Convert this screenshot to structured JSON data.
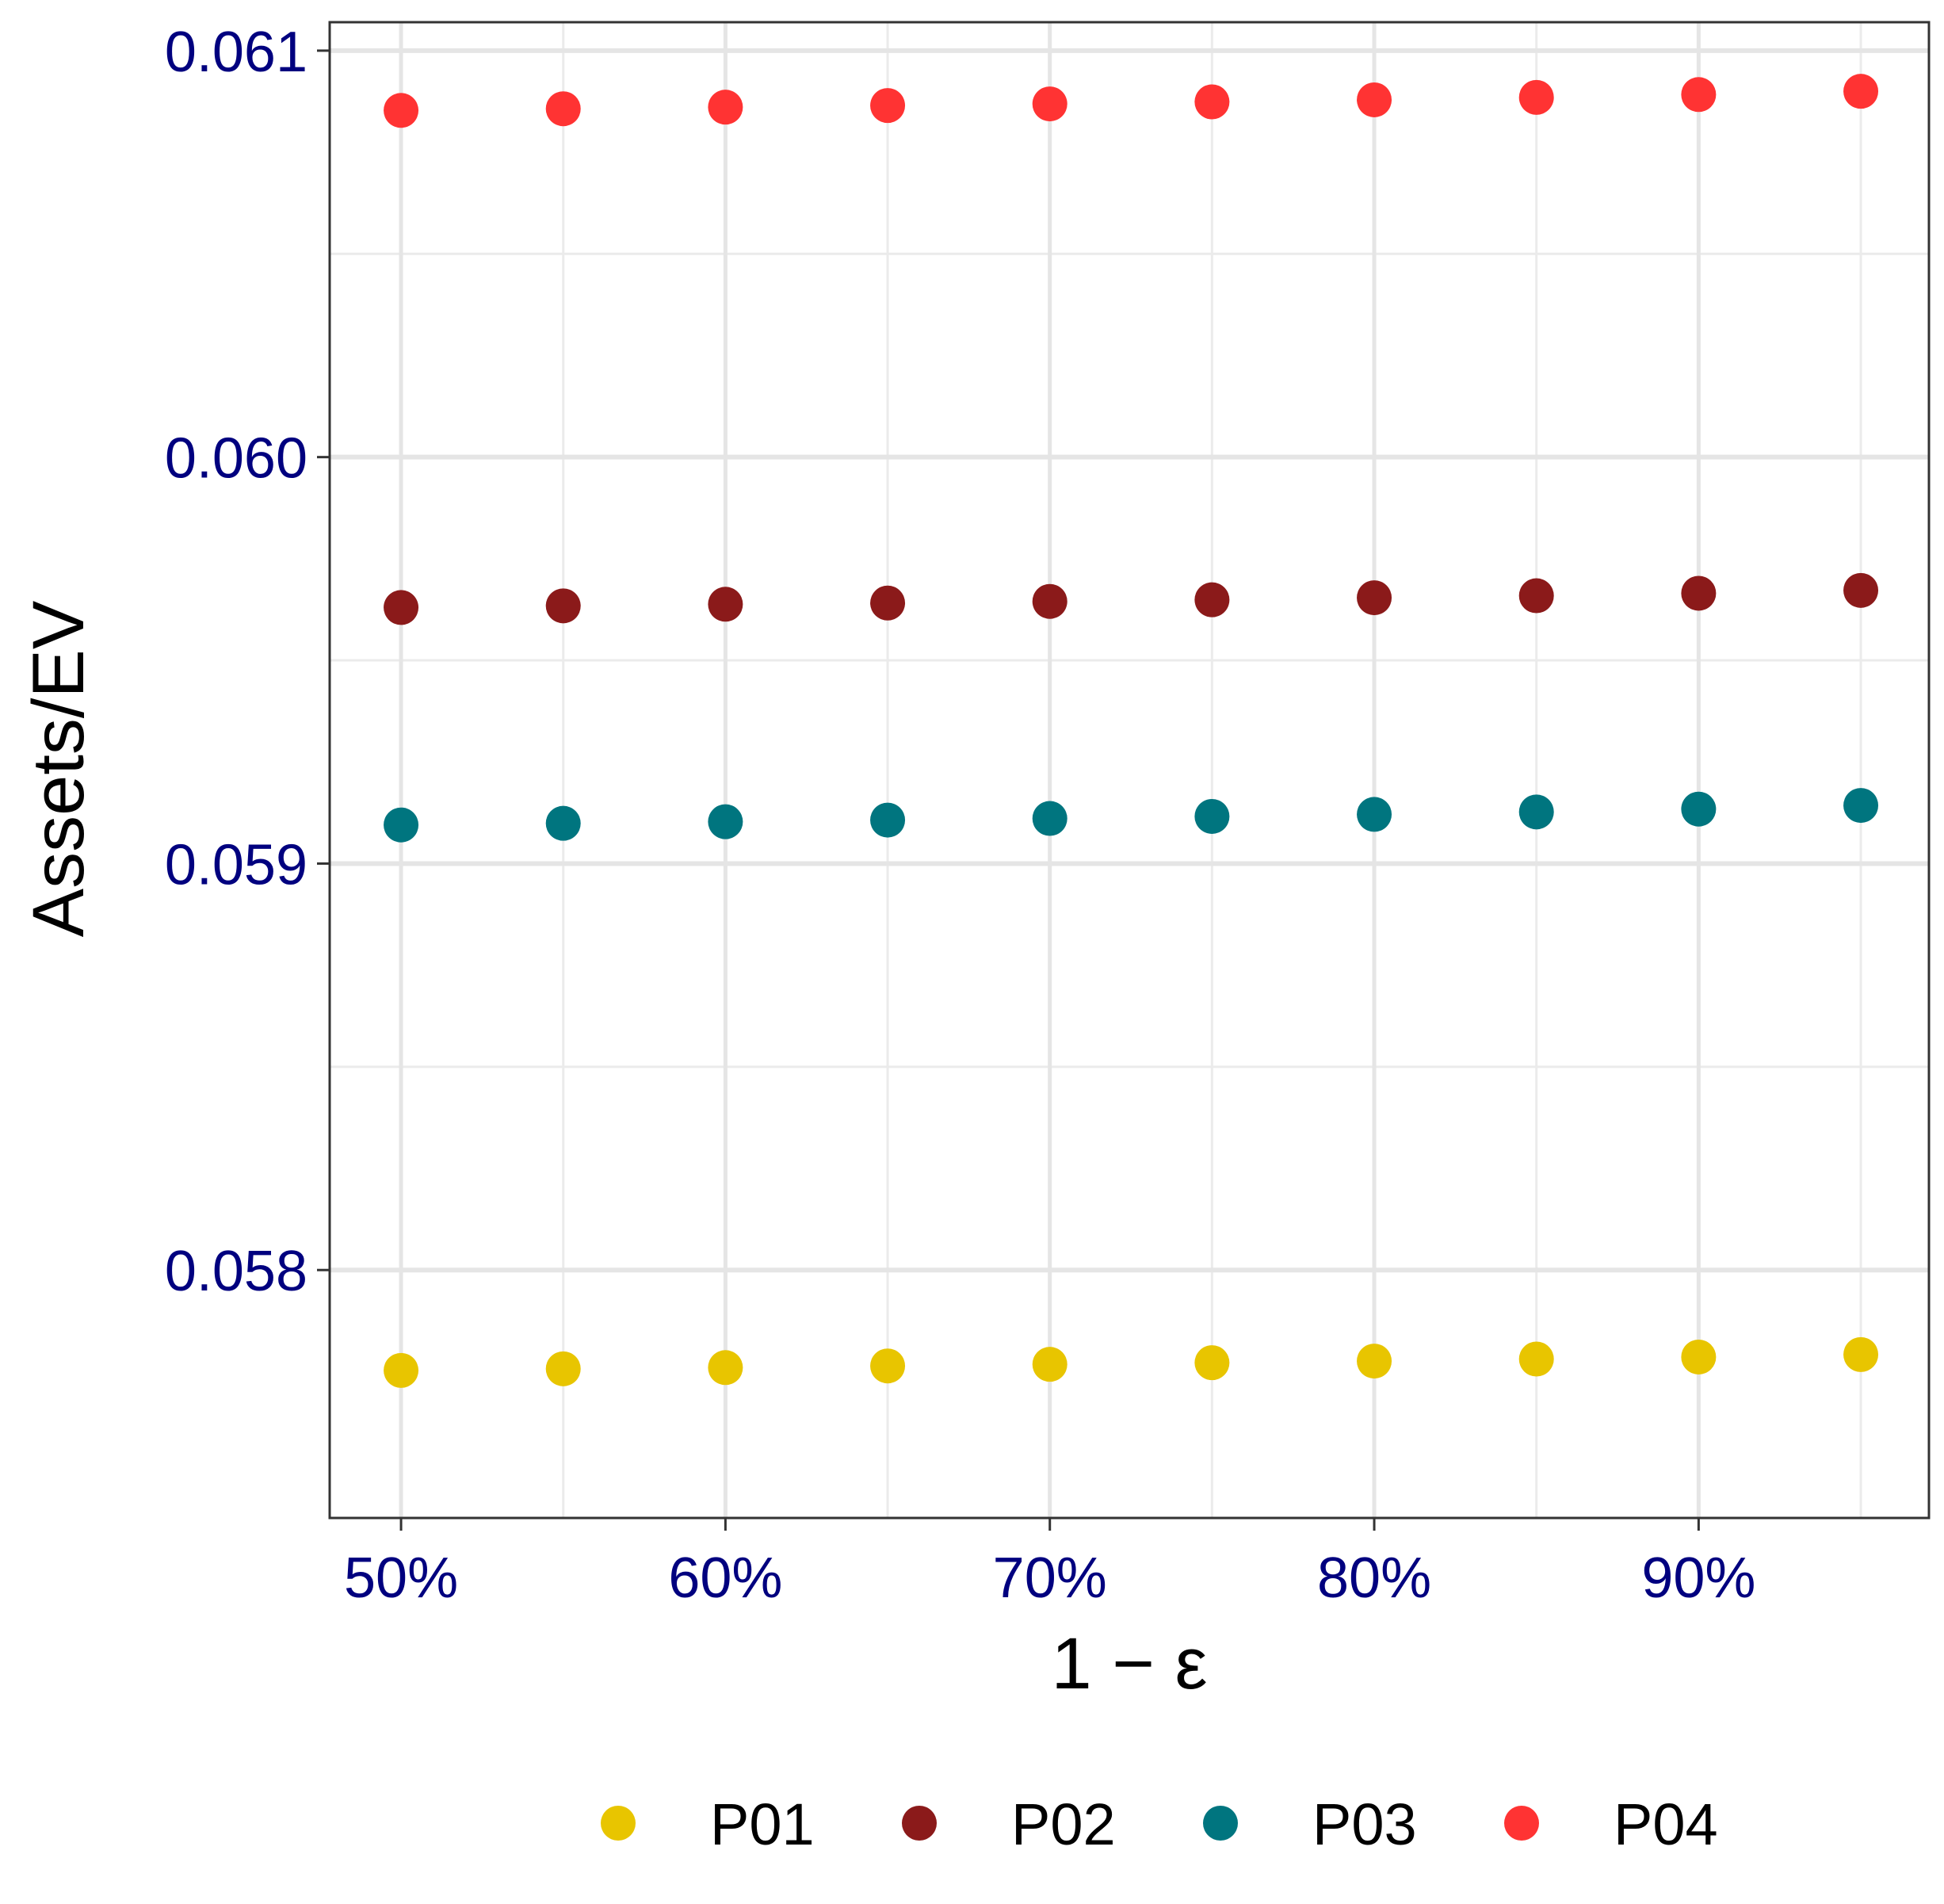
{
  "chart_data": {
    "type": "scatter",
    "title": "",
    "xlabel": "1 − ε",
    "ylabel": "Assets/EV",
    "x": [
      0.5,
      0.55,
      0.6,
      0.65,
      0.7,
      0.75,
      0.8,
      0.85,
      0.9,
      0.95
    ],
    "xlim": [
      0.478,
      0.971
    ],
    "ylim": [
      0.05739,
      0.06107
    ],
    "x_ticks": [
      0.5,
      0.6,
      0.7,
      0.8,
      0.9
    ],
    "x_tick_labels": [
      "50%",
      "60%",
      "70%",
      "80%",
      "90%"
    ],
    "y_ticks": [
      0.058,
      0.059,
      0.06,
      0.061
    ],
    "y_tick_labels": [
      "0.058",
      "0.059",
      "0.060",
      "0.061"
    ],
    "y_minor_ticks": [
      0.0585,
      0.0595,
      0.0605
    ],
    "grid": true,
    "legend_position": "bottom",
    "series": [
      {
        "name": "P01",
        "color": "#e8c500",
        "values": [
          0.057753,
          0.057757,
          0.05776,
          0.057764,
          0.057768,
          0.057772,
          0.057776,
          0.057781,
          0.057786,
          0.057792
        ]
      },
      {
        "name": "P02",
        "color": "#8b1a1a",
        "values": [
          0.05963,
          0.059634,
          0.059638,
          0.059641,
          0.059645,
          0.059649,
          0.059654,
          0.059659,
          0.059665,
          0.059672
        ]
      },
      {
        "name": "P03",
        "color": "#00757f",
        "values": [
          0.059095,
          0.059099,
          0.059103,
          0.059107,
          0.059111,
          0.059116,
          0.059121,
          0.059127,
          0.059134,
          0.059143
        ]
      },
      {
        "name": "P04",
        "color": "#ff3333",
        "values": [
          0.060853,
          0.060857,
          0.060861,
          0.060865,
          0.060869,
          0.060874,
          0.060879,
          0.060885,
          0.060892,
          0.0609
        ]
      }
    ]
  }
}
